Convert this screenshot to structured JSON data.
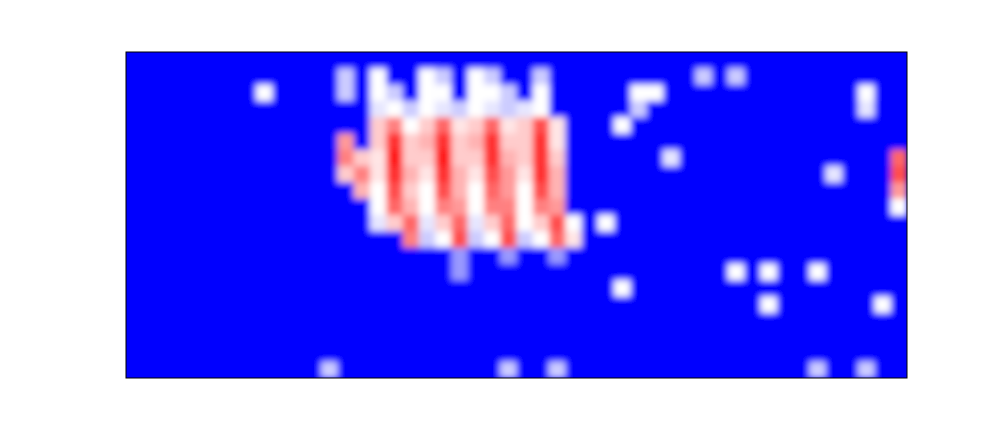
{
  "chart_data": {
    "type": "heatmap",
    "tick_labels": false,
    "color_range": [
      0,
      1
    ],
    "cells": [
      [
        0,
        0,
        0,
        0,
        0,
        0,
        0,
        0,
        0,
        0,
        0,
        0,
        0,
        0,
        0,
        0,
        0,
        0,
        0,
        0,
        0,
        0,
        0,
        0,
        0,
        0,
        0,
        0,
        0,
        0,
        0,
        0,
        0,
        0,
        0,
        0,
        0,
        0,
        0,
        0,
        0,
        0,
        0,
        0,
        0,
        0,
        0,
        0
      ],
      [
        0,
        0,
        0,
        0,
        0,
        0,
        0,
        0,
        0,
        0,
        0,
        0,
        0,
        0.4,
        0,
        0.5,
        0,
        0,
        0.5,
        0.4,
        0,
        0.5,
        0.4,
        0,
        0,
        0.4,
        0,
        0,
        0,
        0,
        0,
        0,
        0,
        0,
        0,
        0.4,
        0,
        0.4,
        0,
        0,
        0,
        0,
        0,
        0,
        0,
        0,
        0,
        0
      ],
      [
        0,
        0,
        0,
        0,
        0,
        0,
        0,
        0,
        0.5,
        0,
        0,
        0,
        0,
        0.4,
        0,
        0.5,
        0.4,
        0,
        0.5,
        0.5,
        0,
        0.5,
        0.5,
        0.4,
        0,
        0.5,
        0,
        0,
        0,
        0,
        0,
        0.5,
        0.5,
        0,
        0,
        0,
        0,
        0,
        0,
        0,
        0,
        0,
        0,
        0,
        0,
        0.5,
        0,
        0
      ],
      [
        0,
        0,
        0,
        0,
        0,
        0,
        0,
        0,
        0,
        0,
        0,
        0,
        0,
        0,
        0,
        0.45,
        0.5,
        0.4,
        0.5,
        0.45,
        0.4,
        0.5,
        0.45,
        0.4,
        0.45,
        0.5,
        0,
        0,
        0,
        0,
        0,
        0.4,
        0,
        0,
        0,
        0,
        0,
        0,
        0,
        0,
        0,
        0,
        0,
        0,
        0,
        0.45,
        0,
        0
      ],
      [
        0,
        0,
        0,
        0,
        0,
        0,
        0,
        0,
        0,
        0,
        0,
        0,
        0,
        0,
        0,
        0.6,
        0.75,
        0.5,
        0.6,
        0.8,
        0.55,
        0.6,
        0.8,
        0.55,
        0.6,
        0.85,
        0.55,
        0,
        0,
        0,
        0.5,
        0,
        0,
        0,
        0,
        0,
        0,
        0,
        0,
        0,
        0,
        0,
        0,
        0,
        0,
        0,
        0,
        0
      ],
      [
        0,
        0,
        0,
        0,
        0,
        0,
        0,
        0,
        0,
        0,
        0,
        0,
        0,
        0.7,
        0,
        0.6,
        0.9,
        0.6,
        0.65,
        0.9,
        0.6,
        0.65,
        0.9,
        0.6,
        0.6,
        0.9,
        0.55,
        0,
        0,
        0,
        0,
        0,
        0,
        0,
        0,
        0,
        0,
        0,
        0,
        0,
        0,
        0,
        0,
        0,
        0,
        0,
        0,
        0
      ],
      [
        0,
        0,
        0,
        0,
        0,
        0,
        0,
        0,
        0,
        0,
        0,
        0,
        0,
        0.75,
        0.6,
        0.55,
        0.95,
        0.6,
        0.6,
        0.95,
        0.6,
        0.6,
        0.9,
        0.65,
        0.6,
        0.9,
        0.6,
        0,
        0,
        0,
        0,
        0,
        0,
        0.45,
        0,
        0,
        0,
        0,
        0,
        0,
        0,
        0,
        0,
        0,
        0,
        0,
        0,
        0.8
      ],
      [
        0,
        0,
        0,
        0,
        0,
        0,
        0,
        0,
        0,
        0,
        0,
        0,
        0,
        0.6,
        0.75,
        0.55,
        0.9,
        0.65,
        0.55,
        0.9,
        0.65,
        0.55,
        0.85,
        0.7,
        0.55,
        0.9,
        0.65,
        0,
        0,
        0,
        0,
        0,
        0,
        0,
        0,
        0,
        0,
        0,
        0,
        0,
        0,
        0,
        0,
        0.45,
        0,
        0,
        0,
        0.85
      ],
      [
        0,
        0,
        0,
        0,
        0,
        0,
        0,
        0,
        0,
        0,
        0,
        0,
        0,
        0,
        0.65,
        0.5,
        0.85,
        0.6,
        0.5,
        0.85,
        0.65,
        0.5,
        0.8,
        0.7,
        0.5,
        0.85,
        0.65,
        0,
        0,
        0,
        0,
        0,
        0,
        0,
        0,
        0,
        0,
        0,
        0,
        0,
        0,
        0,
        0,
        0,
        0,
        0,
        0,
        0.7
      ],
      [
        0,
        0,
        0,
        0,
        0,
        0,
        0,
        0,
        0,
        0,
        0,
        0,
        0,
        0,
        0,
        0.5,
        0.8,
        0.65,
        0.5,
        0.75,
        0.7,
        0.5,
        0.75,
        0.75,
        0.5,
        0.75,
        0.7,
        0,
        0,
        0,
        0,
        0,
        0,
        0,
        0,
        0,
        0,
        0,
        0,
        0,
        0,
        0,
        0,
        0,
        0,
        0,
        0,
        0.5
      ],
      [
        0,
        0,
        0,
        0,
        0,
        0,
        0,
        0,
        0,
        0,
        0,
        0,
        0,
        0,
        0,
        0.45,
        0.6,
        0.8,
        0.45,
        0.6,
        0.8,
        0.45,
        0.6,
        0.8,
        0.5,
        0.6,
        0.85,
        0.5,
        0,
        0.5,
        0,
        0,
        0,
        0,
        0,
        0,
        0,
        0,
        0,
        0,
        0,
        0,
        0,
        0,
        0,
        0,
        0,
        0
      ],
      [
        0,
        0,
        0,
        0,
        0,
        0,
        0,
        0,
        0,
        0,
        0,
        0,
        0,
        0,
        0,
        0,
        0,
        0.75,
        0.4,
        0.5,
        0.85,
        0.4,
        0.5,
        0.85,
        0.4,
        0.5,
        0.8,
        0.55,
        0,
        0,
        0,
        0,
        0,
        0,
        0,
        0,
        0,
        0,
        0,
        0,
        0,
        0,
        0,
        0,
        0,
        0,
        0,
        0
      ],
      [
        0,
        0,
        0,
        0,
        0,
        0,
        0,
        0,
        0,
        0,
        0,
        0,
        0,
        0,
        0,
        0,
        0,
        0,
        0,
        0,
        0.3,
        0,
        0,
        0.3,
        0,
        0,
        0.3,
        0,
        0,
        0,
        0,
        0,
        0,
        0,
        0,
        0,
        0,
        0,
        0,
        0,
        0,
        0,
        0,
        0,
        0,
        0,
        0,
        0
      ],
      [
        0,
        0,
        0,
        0,
        0,
        0,
        0,
        0,
        0,
        0,
        0,
        0,
        0,
        0,
        0,
        0,
        0,
        0,
        0,
        0,
        0.3,
        0,
        0,
        0,
        0,
        0,
        0,
        0,
        0,
        0,
        0,
        0,
        0,
        0,
        0,
        0,
        0,
        0.5,
        0,
        0.5,
        0,
        0,
        0.5,
        0,
        0,
        0,
        0,
        0
      ],
      [
        0,
        0,
        0,
        0,
        0,
        0,
        0,
        0,
        0,
        0,
        0,
        0,
        0,
        0,
        0,
        0,
        0,
        0,
        0,
        0,
        0,
        0,
        0,
        0,
        0,
        0,
        0,
        0,
        0,
        0,
        0.5,
        0,
        0,
        0,
        0,
        0,
        0,
        0,
        0,
        0,
        0,
        0,
        0,
        0,
        0,
        0,
        0,
        0
      ],
      [
        0,
        0,
        0,
        0,
        0,
        0,
        0,
        0,
        0,
        0,
        0,
        0,
        0,
        0,
        0,
        0,
        0,
        0,
        0,
        0,
        0,
        0,
        0,
        0,
        0,
        0,
        0,
        0,
        0,
        0,
        0,
        0,
        0,
        0,
        0,
        0,
        0,
        0,
        0,
        0.5,
        0,
        0,
        0,
        0,
        0,
        0,
        0.5,
        0
      ],
      [
        0,
        0,
        0,
        0,
        0,
        0,
        0,
        0,
        0,
        0,
        0,
        0,
        0,
        0,
        0,
        0,
        0,
        0,
        0,
        0,
        0,
        0,
        0,
        0,
        0,
        0,
        0,
        0,
        0,
        0,
        0,
        0,
        0,
        0,
        0,
        0,
        0,
        0,
        0,
        0,
        0,
        0,
        0,
        0,
        0,
        0,
        0,
        0
      ],
      [
        0,
        0,
        0,
        0,
        0,
        0,
        0,
        0,
        0,
        0,
        0,
        0,
        0,
        0,
        0,
        0,
        0,
        0,
        0,
        0,
        0,
        0,
        0,
        0,
        0,
        0,
        0,
        0,
        0,
        0,
        0,
        0,
        0,
        0,
        0,
        0,
        0,
        0,
        0,
        0,
        0,
        0,
        0,
        0,
        0,
        0,
        0,
        0
      ],
      [
        0,
        0,
        0,
        0,
        0,
        0,
        0,
        0,
        0,
        0,
        0,
        0,
        0,
        0,
        0,
        0,
        0,
        0,
        0,
        0,
        0,
        0,
        0,
        0,
        0,
        0,
        0,
        0,
        0,
        0,
        0,
        0,
        0,
        0,
        0,
        0,
        0,
        0,
        0,
        0,
        0,
        0,
        0,
        0,
        0,
        0,
        0,
        0
      ],
      [
        0,
        0,
        0,
        0,
        0,
        0,
        0,
        0,
        0,
        0,
        0,
        0,
        0.4,
        0,
        0,
        0,
        0,
        0,
        0,
        0,
        0,
        0,
        0,
        0.4,
        0,
        0,
        0.4,
        0,
        0,
        0,
        0,
        0,
        0,
        0,
        0,
        0,
        0,
        0,
        0,
        0,
        0,
        0,
        0.4,
        0,
        0,
        0.4,
        0,
        0
      ]
    ]
  }
}
